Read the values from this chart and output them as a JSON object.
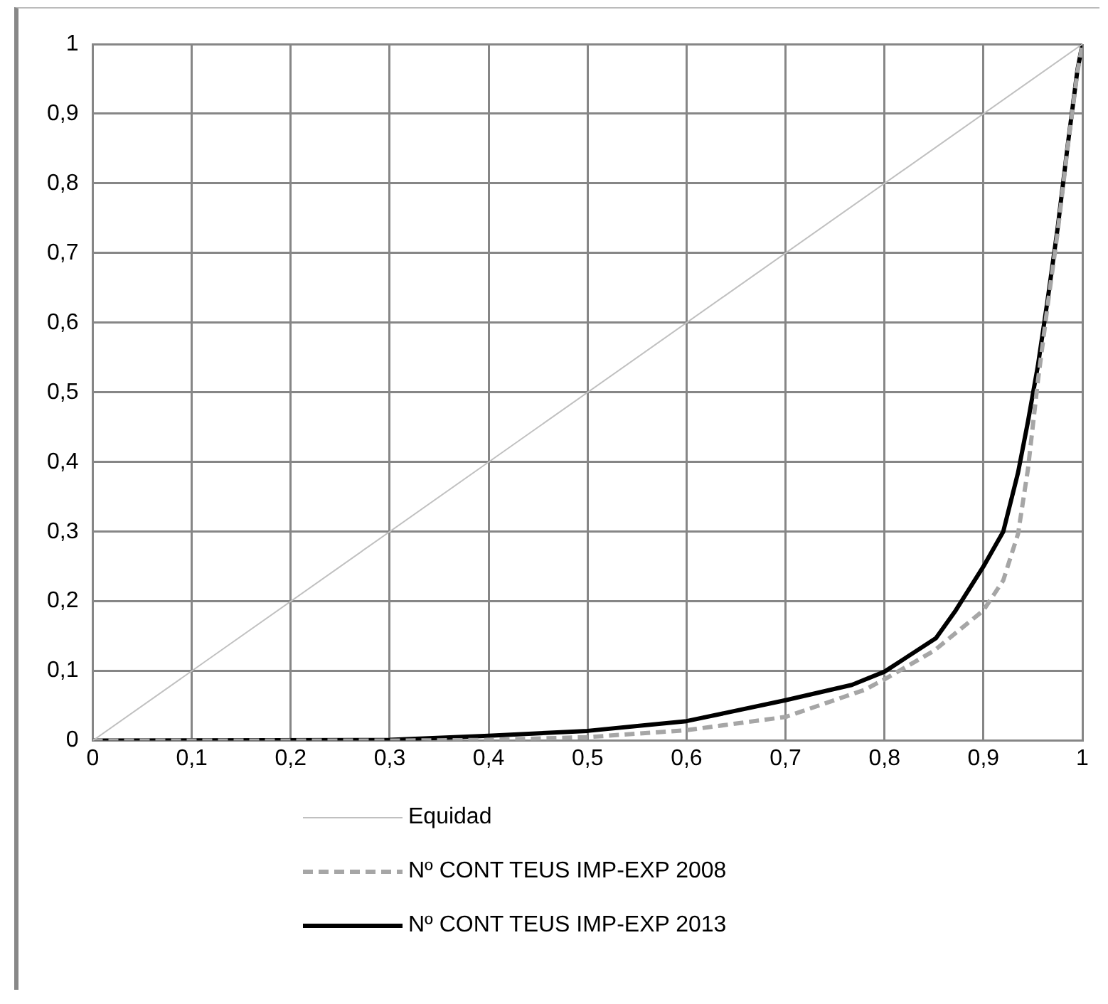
{
  "chart_data": {
    "type": "line",
    "xlim": [
      0,
      1
    ],
    "ylim": [
      0,
      1
    ],
    "xticks": [
      0,
      {
        "value": 0.1,
        "label": "0,1"
      },
      {
        "value": 0.2,
        "label": "0,2"
      },
      {
        "value": 0.3,
        "label": "0,3"
      },
      {
        "value": 0.4,
        "label": "0,4"
      },
      {
        "value": 0.5,
        "label": "0,5"
      },
      {
        "value": 0.6,
        "label": "0,6"
      },
      {
        "value": 0.7,
        "label": "0,7"
      },
      {
        "value": 0.8,
        "label": "0,8"
      },
      {
        "value": 0.9,
        "label": "0,9"
      },
      1
    ],
    "yticks": [
      0,
      {
        "value": 0.1,
        "label": "0,1"
      },
      {
        "value": 0.2,
        "label": "0,2"
      },
      {
        "value": 0.3,
        "label": "0,3"
      },
      {
        "value": 0.4,
        "label": "0,4"
      },
      {
        "value": 0.5,
        "label": "0,5"
      },
      {
        "value": 0.6,
        "label": "0,6"
      },
      {
        "value": 0.7,
        "label": "0,7"
      },
      {
        "value": 0.8,
        "label": "0,8"
      },
      {
        "value": 0.9,
        "label": "0,9"
      },
      1
    ],
    "grid": true,
    "legend": "bottom",
    "marker": "none",
    "series": [
      {
        "name": "Equidad",
        "color": "#c0c0c0",
        "line_style": "solid",
        "x": [
          0,
          1
        ],
        "values": [
          0,
          1
        ]
      },
      {
        "name": "Nº CONT TEUS IMP-EXP 2008",
        "color": "#a6a6a6",
        "line_style": "dashed",
        "x": [
          0,
          0.3,
          0.4,
          0.5,
          0.6,
          0.7,
          0.78,
          0.8,
          0.85,
          0.9,
          0.92,
          0.935,
          0.945,
          0.955,
          0.965,
          0.975,
          0.985,
          0.995,
          1
        ],
        "values": [
          0,
          0,
          0.001,
          0.005,
          0.015,
          0.034,
          0.073,
          0.088,
          0.129,
          0.187,
          0.23,
          0.297,
          0.39,
          0.516,
          0.626,
          0.73,
          0.85,
          0.96,
          1
        ]
      },
      {
        "name": "Nº CONT TEUS IMP-EXP 2013",
        "color": "#000000",
        "line_style": "solid",
        "x": [
          0,
          0.3,
          0.4,
          0.5,
          0.6,
          0.7,
          0.767,
          0.8,
          0.852,
          0.872,
          0.9,
          0.92,
          0.935,
          0.945,
          0.955,
          0.965,
          0.975,
          0.985,
          0.995,
          1
        ],
        "values": [
          0,
          0.001,
          0.007,
          0.014,
          0.028,
          0.058,
          0.08,
          0.099,
          0.147,
          0.187,
          0.25,
          0.3,
          0.385,
          0.458,
          0.538,
          0.634,
          0.736,
          0.853,
          0.963,
          1
        ]
      }
    ]
  }
}
